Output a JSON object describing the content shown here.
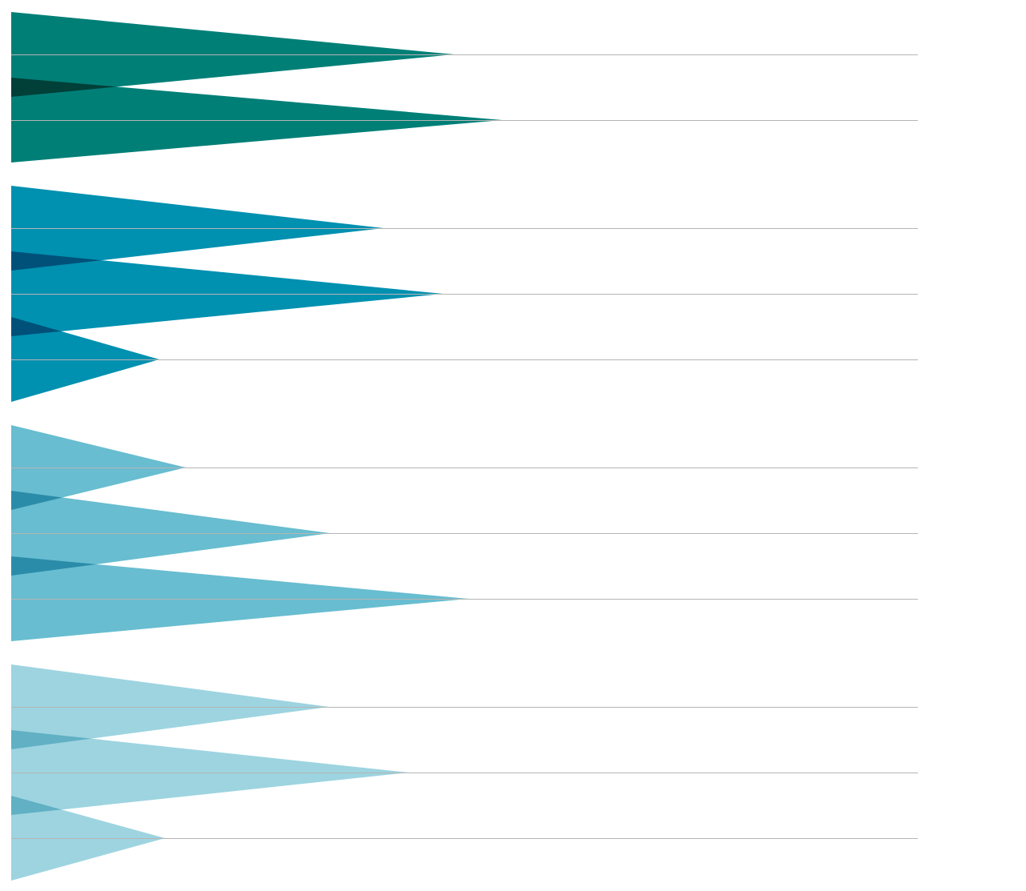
{
  "chart_data": {
    "type": "triangle",
    "xlim": [
      0,
      1132
    ],
    "series": [
      {
        "color": "#007f77",
        "values": [
          553,
          613
        ]
      },
      {
        "color": "#0090b0",
        "values": [
          465,
          539,
          185
        ]
      },
      {
        "color": "#68bdd0",
        "values": [
          218,
          398,
          571
        ]
      },
      {
        "color": "#9dd4e0",
        "values": [
          397,
          496,
          192
        ]
      }
    ]
  }
}
